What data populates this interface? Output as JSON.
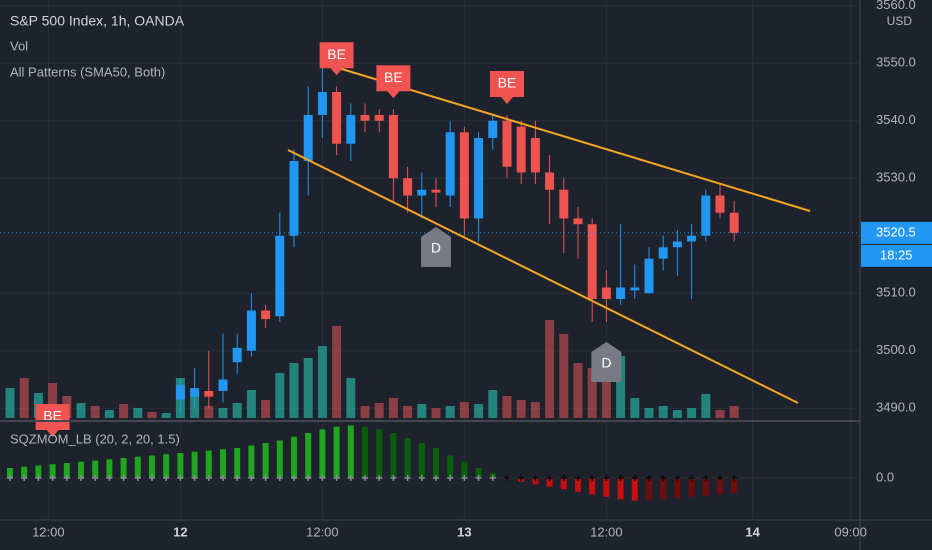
{
  "header": {
    "symbol": "S&P 500 Index, 1h, OANDA",
    "volume_label": "Vol",
    "patterns_label": "All Patterns (SMA50, Both)",
    "currency": "USD",
    "countdown": "18:25"
  },
  "chart_data": [
    {
      "type": "candlestick",
      "xlim": [
        -0.704,
        59.86
      ],
      "xticks": [
        {
          "value": 2.7,
          "label": "12:00"
        },
        {
          "value": 12,
          "label": "12"
        },
        {
          "value": 22,
          "label": "12:00"
        },
        {
          "value": 32,
          "label": "13"
        },
        {
          "value": 42,
          "label": "12:00"
        },
        {
          "value": 52.3,
          "label": "14"
        },
        {
          "value": 59.2,
          "label": "09:00"
        }
      ],
      "ylim": [
        3488.3,
        3561
      ],
      "yticks": [
        {
          "value": 3490,
          "label": "3490.0"
        },
        {
          "value": 3500,
          "label": "3500.0"
        },
        {
          "value": 3510,
          "label": "3510.0"
        },
        {
          "value": 3520,
          "label": "3520.0"
        },
        {
          "value": 3530,
          "label": "3530.0"
        },
        {
          "value": 3540,
          "label": "3540.0"
        },
        {
          "value": 3550,
          "label": "3550.0"
        },
        {
          "value": 3560,
          "label": "3560.0"
        }
      ],
      "grid": true,
      "colors": {
        "up": "#2196f3",
        "down": "#ef5350",
        "volume_up": "#26a69a",
        "volume_down": "#b04a4d",
        "line": "#f5a623"
      },
      "open": [
        null,
        null,
        null,
        null,
        null,
        null,
        null,
        null,
        null,
        null,
        null,
        null,
        3491.5,
        3492,
        3493,
        3493,
        3498,
        3500,
        3507,
        3506,
        3520,
        3533,
        3541,
        3545,
        3536,
        3541,
        3541,
        3541,
        3530,
        3527,
        3528,
        3527,
        3538,
        3523,
        3537,
        3540,
        3539,
        3537,
        3531,
        3528,
        3523,
        3522,
        3511,
        3509,
        3510.5,
        3510,
        3516,
        3518,
        3519,
        3520,
        3527,
        3524
      ],
      "high": [
        null,
        null,
        null,
        null,
        null,
        null,
        null,
        null,
        null,
        null,
        null,
        null,
        3495,
        3497,
        3500,
        3503,
        3503,
        3510,
        3508,
        3524,
        3535,
        3546,
        3550,
        3546,
        3543,
        3543,
        3542,
        3542,
        3532,
        3531,
        3530,
        3540,
        3539,
        3538,
        3541,
        3541,
        3540,
        3540,
        3534,
        3530,
        3525,
        3523,
        3514,
        3522,
        3515,
        3518,
        3520,
        3521,
        3522,
        3528,
        3529,
        3526
      ],
      "low": [
        null,
        null,
        null,
        null,
        null,
        null,
        null,
        null,
        null,
        null,
        null,
        null,
        3489,
        3490,
        3490,
        3491,
        3496,
        3499,
        3504,
        3505,
        3518,
        3527,
        3537,
        3534,
        3533,
        3538,
        3538,
        3526,
        3524,
        3523,
        3525,
        3525,
        3520,
        3519,
        3535,
        3530,
        3529,
        3529,
        3522,
        3517,
        3516,
        3505,
        3505,
        3508,
        3509,
        3510,
        3514,
        3513,
        3509,
        3519,
        3523,
        3519
      ],
      "close": [
        null,
        null,
        null,
        null,
        null,
        null,
        null,
        null,
        null,
        null,
        null,
        null,
        3494,
        3493.5,
        3492,
        3495,
        3500.5,
        3507,
        3505.5,
        3520,
        3533,
        3541,
        3545,
        3536,
        3541,
        3540,
        3540,
        3530,
        3527,
        3528,
        3527.5,
        3538,
        3523,
        3537,
        3540,
        3532,
        3531,
        3531,
        3528,
        3523,
        3522,
        3509,
        3509,
        3511,
        3511,
        3516,
        3518,
        3519,
        3520,
        3527,
        3524,
        3520.5
      ],
      "last_price": 3520.5,
      "volume": {
        "lim": [
          0,
          100
        ],
        "values": [
          30,
          40,
          25,
          35,
          22,
          15,
          12,
          8,
          14,
          10,
          6,
          5,
          40,
          28,
          12,
          10,
          15,
          28,
          18,
          45,
          55,
          60,
          72,
          92,
          40,
          12,
          15,
          20,
          12,
          14,
          10,
          12,
          16,
          14,
          28,
          22,
          18,
          16,
          98,
          84,
          55,
          50,
          55,
          62,
          20,
          10,
          12,
          8,
          10,
          24,
          8,
          12
        ],
        "up": [
          true,
          false,
          true,
          false,
          false,
          true,
          false,
          true,
          false,
          true,
          false,
          true,
          true,
          true,
          false,
          true,
          true,
          true,
          false,
          true,
          true,
          true,
          true,
          false,
          true,
          false,
          false,
          false,
          false,
          true,
          false,
          true,
          false,
          true,
          true,
          false,
          false,
          false,
          false,
          false,
          false,
          false,
          false,
          true,
          true,
          true,
          true,
          true,
          true,
          true,
          false,
          false
        ]
      },
      "patterns": [
        {
          "label": "BE",
          "index": 3,
          "side": "above"
        },
        {
          "label": "BE",
          "index": 23,
          "side": "above"
        },
        {
          "label": "BE",
          "index": 27,
          "side": "above"
        },
        {
          "label": "BE",
          "index": 35,
          "side": "above"
        },
        {
          "label": "D",
          "index": 30,
          "side": "below"
        },
        {
          "label": "D",
          "index": 42,
          "side": "below"
        }
      ]
    },
    {
      "type": "bar",
      "title": "SQZMOM_LB (20, 2, 20, 1.5)",
      "ylim": [
        -16.8,
        21.2
      ],
      "yticks": [
        {
          "value": 0,
          "label": "0.0"
        }
      ],
      "palette": {
        "rising_positive": "#1fa51f",
        "falling_positive": "#0b5e0b",
        "falling_negative": "#c80f0f",
        "rising_negative": "#6e0c0c",
        "squeeze_on": "#0b0c10",
        "squeeze_off": "#8a8d96"
      },
      "values": [
        4,
        4.5,
        5,
        5.5,
        6,
        6.5,
        7,
        7.5,
        8,
        8.5,
        9,
        9.5,
        10,
        10.5,
        11,
        11.5,
        12,
        13,
        14,
        15,
        16.5,
        18,
        19.5,
        20.5,
        21,
        20.5,
        19.5,
        18,
        16,
        14,
        12,
        9,
        6.5,
        4,
        2,
        -0.5,
        -1.5,
        -2.5,
        -3.5,
        -4.5,
        -5.5,
        -6.5,
        -7.5,
        -8.5,
        -9,
        -8.8,
        -8.5,
        -8,
        -7.5,
        -7,
        -6.5,
        -6
      ]
    }
  ]
}
